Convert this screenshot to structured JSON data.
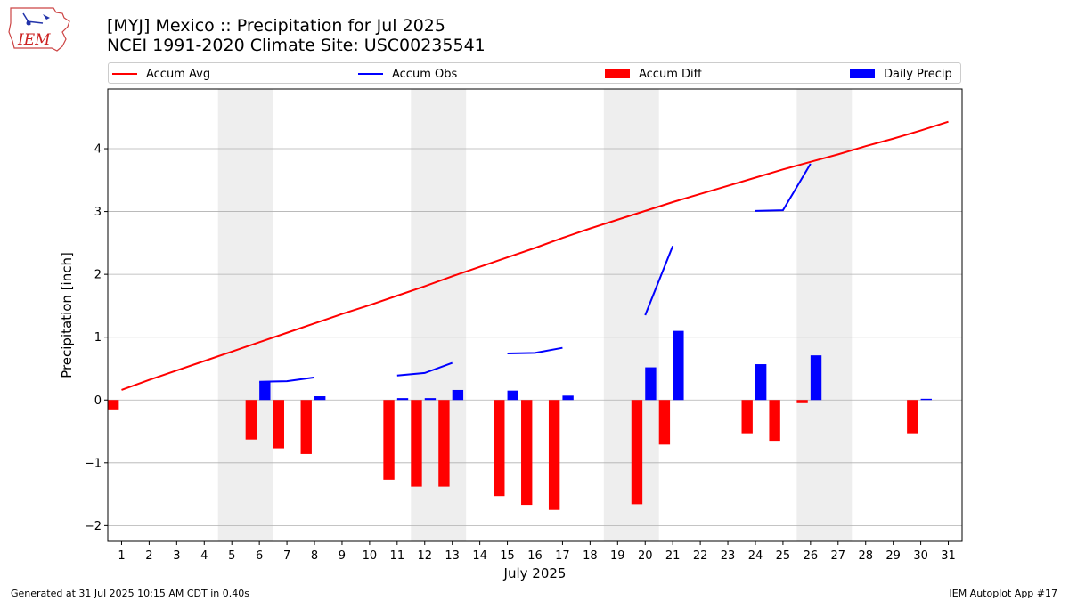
{
  "title_line1": "[MYJ] Mexico :: Precipitation for Jul 2025",
  "title_line2": "NCEI 1991-2020 Climate Site: USC00235541",
  "footer_left": "Generated at 31 Jul 2025 10:15 AM CDT in 0.40s",
  "footer_right": "IEM Autoplot App #17",
  "logo_text": "IEM",
  "legend": {
    "accum_avg": "Accum Avg",
    "accum_obs": "Accum Obs",
    "accum_diff": "Accum Diff",
    "daily_precip": "Daily Precip"
  },
  "colors": {
    "avg": "#ff0000",
    "obs": "#0000ff",
    "diff": "#ff0000",
    "daily": "#0000ff",
    "weekend": "#eeeeee",
    "grid": "#b0b0b0"
  },
  "chart_data": {
    "type": "bar",
    "xlabel": "July 2025",
    "ylabel": "Precipitation [inch]",
    "x": [
      1,
      2,
      3,
      4,
      5,
      6,
      7,
      8,
      9,
      10,
      11,
      12,
      13,
      14,
      15,
      16,
      17,
      18,
      19,
      20,
      21,
      22,
      23,
      24,
      25,
      26,
      27,
      28,
      29,
      30,
      31
    ],
    "ylim": [
      -2.25,
      4.95
    ],
    "yticks": [
      -2,
      -1,
      0,
      1,
      2,
      3,
      4
    ],
    "weekend_days": [
      5,
      6,
      12,
      13,
      19,
      20,
      26,
      27
    ],
    "grid": "horizontal",
    "legend_position": "top",
    "series": [
      {
        "name": "Accum Avg",
        "kind": "line",
        "values": [
          0.16,
          0.32,
          0.47,
          0.62,
          0.77,
          0.92,
          1.07,
          1.22,
          1.37,
          1.51,
          1.66,
          1.81,
          1.97,
          2.12,
          2.27,
          2.42,
          2.58,
          2.73,
          2.87,
          3.01,
          3.15,
          3.28,
          3.41,
          3.54,
          3.67,
          3.79,
          3.91,
          4.04,
          4.16,
          4.29,
          4.43
        ]
      },
      {
        "name": "Accum Obs",
        "kind": "line",
        "values": [
          null,
          null,
          null,
          null,
          null,
          0.29,
          0.3,
          0.36,
          null,
          null,
          0.39,
          0.43,
          0.59,
          null,
          0.74,
          0.75,
          0.83,
          null,
          null,
          1.35,
          2.45,
          null,
          null,
          3.01,
          3.02,
          3.76,
          null,
          null,
          null,
          null,
          null
        ]
      },
      {
        "name": "Accum Diff",
        "kind": "bar",
        "values": [
          -0.15,
          null,
          null,
          null,
          null,
          -0.63,
          -0.77,
          -0.86,
          null,
          null,
          -1.27,
          -1.38,
          -1.38,
          null,
          -1.53,
          -1.67,
          -1.75,
          null,
          null,
          -1.66,
          -0.71,
          null,
          null,
          -0.53,
          -0.65,
          -0.05,
          null,
          null,
          null,
          -0.53,
          null
        ]
      },
      {
        "name": "Daily Precip",
        "kind": "bar",
        "values": [
          null,
          null,
          null,
          null,
          null,
          0.29,
          null,
          0.06,
          null,
          null,
          0.03,
          0.03,
          0.16,
          null,
          0.15,
          null,
          0.07,
          null,
          null,
          0.52,
          1.1,
          null,
          null,
          0.57,
          null,
          0.71,
          null,
          null,
          null,
          0.02,
          null
        ]
      }
    ]
  }
}
